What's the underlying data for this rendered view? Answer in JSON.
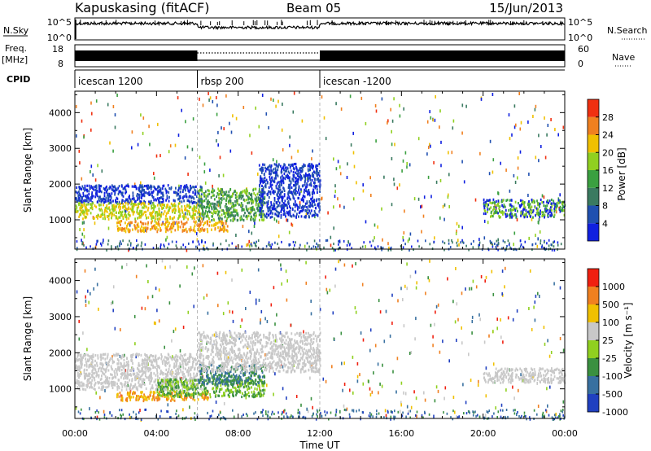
{
  "header": {
    "station": "Kapuskasing (fitACF)",
    "beam": "Beam 05",
    "date": "15/Jun/2013"
  },
  "top_panels": {
    "nsky_label": "N.Sky",
    "nsky_ticks": [
      "10^5",
      "10^0"
    ],
    "nsearch_label": "N.Search",
    "nsearch_ticks": [
      "10^5",
      "10^0"
    ],
    "freq_label_line1": "Freq.",
    "freq_label_line2": "[MHz]",
    "freq_ticks": [
      "18",
      "8"
    ],
    "nave_label": "Nave",
    "nave_ticks": [
      "60",
      "0"
    ],
    "cpid_label": "CPID",
    "cpid_segments": [
      {
        "name": "icescan 1200",
        "start_h": 0,
        "end_h": 6
      },
      {
        "name": "rbsp 200",
        "start_h": 6,
        "end_h": 12
      },
      {
        "name": "icescan -1200",
        "start_h": 12,
        "end_h": 24
      }
    ]
  },
  "chart_data": [
    {
      "type": "heatmap",
      "name": "power",
      "ylabel": "Slant Range [km]",
      "ylim": [
        180,
        4600
      ],
      "yticks": [
        "1000",
        "2000",
        "3000",
        "4000"
      ],
      "xlim_hours": [
        0,
        24
      ],
      "colorbar_label": "Power [dB]",
      "colorbar_ticks": [
        "4",
        "8",
        "12",
        "16",
        "20",
        "24",
        "28"
      ],
      "colors": [
        "#1020e0",
        "#2050b0",
        "#3a7a60",
        "#3aa040",
        "#90d020",
        "#f0c000",
        "#f08020",
        "#f03010"
      ],
      "regions": [
        {
          "t": [
            0,
            6.2
          ],
          "r": [
            1500,
            2000
          ],
          "cls": [
            0,
            1
          ]
        },
        {
          "t": [
            0,
            6.2
          ],
          "r": [
            1050,
            1500
          ],
          "cls": [
            4,
            5
          ]
        },
        {
          "t": [
            2.0,
            7.5
          ],
          "r": [
            700,
            1000
          ],
          "cls": [
            5,
            6
          ]
        },
        {
          "t": [
            6.0,
            9.3
          ],
          "r": [
            1000,
            1900
          ],
          "cls": [
            2,
            3,
            4
          ]
        },
        {
          "t": [
            9.0,
            12.0
          ],
          "r": [
            1100,
            2600
          ],
          "cls": [
            0,
            1
          ]
        },
        {
          "t": [
            20.0,
            24.0
          ],
          "r": [
            1100,
            1600
          ],
          "cls": [
            0,
            3,
            4
          ]
        }
      ]
    },
    {
      "type": "heatmap",
      "name": "velocity",
      "ylabel": "Slant Range [km]",
      "ylim": [
        180,
        4600
      ],
      "yticks": [
        "1000",
        "2000",
        "3000",
        "4000"
      ],
      "xlim_hours": [
        0,
        24
      ],
      "colorbar_label": "Velocity [m s⁻¹]",
      "colorbar_ticks": [
        "1000",
        "500",
        "100",
        "25",
        "-25",
        "-100",
        "-500",
        "-1000"
      ],
      "colors": [
        "#2040c0",
        "#3870a0",
        "#3a9040",
        "#90d020",
        "#c8c8c8",
        "#f0c000",
        "#f08020",
        "#f02010"
      ],
      "regions": [
        {
          "t": [
            0,
            6.2
          ],
          "r": [
            1000,
            2000
          ],
          "cls": [
            4
          ]
        },
        {
          "t": [
            2.0,
            6.5
          ],
          "r": [
            700,
            950
          ],
          "cls": [
            6,
            5
          ]
        },
        {
          "t": [
            4.0,
            9.3
          ],
          "r": [
            800,
            1300
          ],
          "cls": [
            3,
            2
          ]
        },
        {
          "t": [
            6.0,
            9.3
          ],
          "r": [
            1150,
            1700
          ],
          "cls": [
            1,
            2
          ]
        },
        {
          "t": [
            6.0,
            12.0
          ],
          "r": [
            1500,
            2600
          ],
          "cls": [
            4
          ]
        },
        {
          "t": [
            20.0,
            24.0
          ],
          "r": [
            1200,
            1600
          ],
          "cls": [
            4
          ]
        }
      ]
    }
  ],
  "time_axis": {
    "ticks": [
      "00:00",
      "04:00",
      "08:00",
      "12:00",
      "16:00",
      "20:00",
      "00:00"
    ],
    "label": "Time UT"
  }
}
